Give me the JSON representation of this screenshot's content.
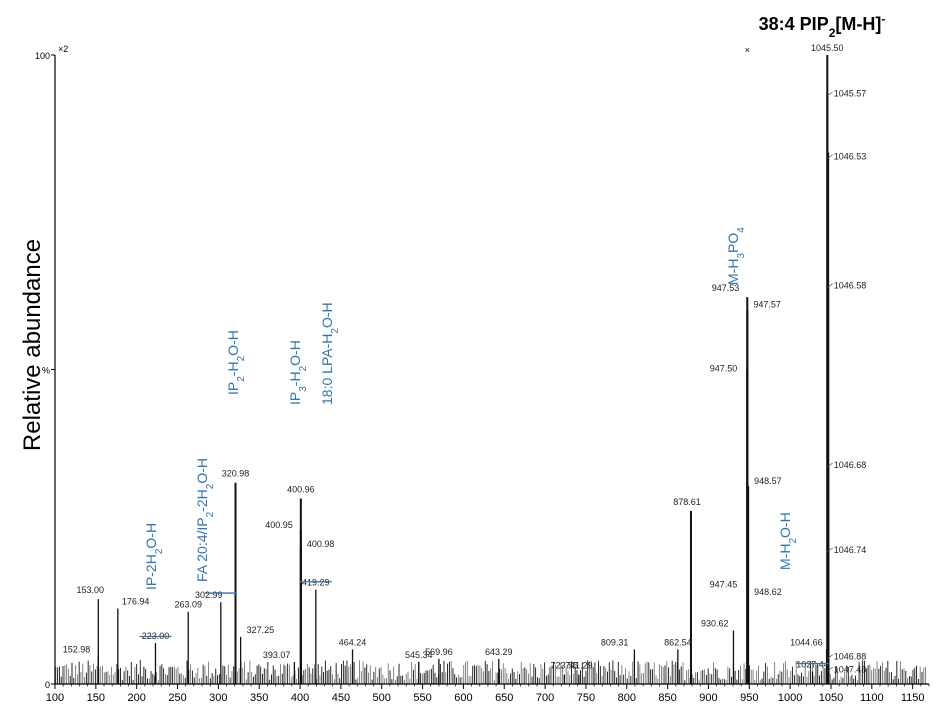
{
  "chart_data": {
    "type": "bar",
    "title": "38:4 PIP₂[M-H]⁻",
    "ylabel": "Relative abundance",
    "xlabel": "",
    "xlim": [
      100,
      1170
    ],
    "ylim": [
      0,
      100
    ],
    "x_ticks": [
      100,
      150,
      200,
      250,
      300,
      350,
      400,
      450,
      500,
      550,
      600,
      650,
      700,
      750,
      800,
      850,
      900,
      950,
      1000,
      1050,
      1100,
      1150
    ],
    "y_ticks": [
      {
        "value": 0,
        "label": "0"
      },
      {
        "value": 50,
        "label": "%"
      },
      {
        "value": 100,
        "label": "100"
      }
    ],
    "zoom_label": "×2",
    "zoom_marker": "×",
    "peaks": [
      {
        "mz": 152.98,
        "label": "152.98",
        "y": 4.5
      },
      {
        "mz": 153.0,
        "label": "153.00",
        "y": 13.5
      },
      {
        "mz": 176.94,
        "label": "176.94",
        "y": 12.0
      },
      {
        "mz": 223.0,
        "label": "223.00",
        "y": 6.5
      },
      {
        "mz": 263.09,
        "label": "263.09",
        "y": 11.5
      },
      {
        "mz": 302.99,
        "label": "302.99",
        "y": 13.0
      },
      {
        "mz": 320.98,
        "label": "320.98",
        "y": 32.0
      },
      {
        "mz": 327.25,
        "label": "327.25",
        "y": 7.5
      },
      {
        "mz": 393.07,
        "label": "393.07",
        "y": 3.5
      },
      {
        "mz": 400.95,
        "label": "400.95",
        "y": 24.5
      },
      {
        "mz": 400.96,
        "label": "400.96",
        "y": 29.5
      },
      {
        "mz": 400.98,
        "label": "400.98",
        "y": 21.5
      },
      {
        "mz": 419.29,
        "label": "419.29",
        "y": 15.0
      },
      {
        "mz": 464.24,
        "label": "464.24",
        "y": 5.5
      },
      {
        "mz": 545.34,
        "label": "545.34",
        "y": 3.5
      },
      {
        "mz": 569.96,
        "label": "569.96",
        "y": 4.0
      },
      {
        "mz": 643.29,
        "label": "643.29",
        "y": 4.0
      },
      {
        "mz": 723.55,
        "label": "723.55",
        "y": 1.5
      },
      {
        "mz": 741.29,
        "label": "741.29",
        "y": 1.5
      },
      {
        "mz": 809.31,
        "label": "809.31",
        "y": 5.5
      },
      {
        "mz": 862.54,
        "label": "862.54",
        "y": 5.5
      },
      {
        "mz": 878.61,
        "label": "878.61",
        "y": 27.5
      },
      {
        "mz": 930.62,
        "label": "930.62",
        "y": 8.5
      },
      {
        "mz": 947.45,
        "label": "947.45",
        "y": 15.0
      },
      {
        "mz": 947.5,
        "label": "947.50",
        "y": 50.0
      },
      {
        "mz": 947.53,
        "label": "947.53",
        "y": 61.5
      },
      {
        "mz": 947.57,
        "label": "947.57",
        "y": 59.5
      },
      {
        "mz": 948.57,
        "label": "948.57",
        "y": 31.5
      },
      {
        "mz": 948.62,
        "label": "948.62",
        "y": 14.5
      },
      {
        "mz": 1027.44,
        "label": "1027.44",
        "y": 2.0
      },
      {
        "mz": 1044.66,
        "label": "1044.66",
        "y": 5.5
      },
      {
        "mz": 1045.5,
        "label": "1045.50",
        "y": 100
      },
      {
        "mz": 1045.57,
        "label": "1045.57",
        "y": 94.0
      },
      {
        "mz": 1046.53,
        "label": "1046.53",
        "y": 84.5
      },
      {
        "mz": 1046.58,
        "label": "1046.58",
        "y": 63.5
      },
      {
        "mz": 1046.68,
        "label": "1046.68",
        "y": 35.0
      },
      {
        "mz": 1046.74,
        "label": "1046.74",
        "y": 21.5
      },
      {
        "mz": 1046.88,
        "label": "1046.88",
        "y": 4.5
      },
      {
        "mz": 1047.48,
        "label": "1047.48",
        "y": 2.5
      }
    ],
    "annotations": [
      {
        "mz": 223.0,
        "label": "IP-2H₂O-H",
        "y": 13.0,
        "underline": true
      },
      {
        "mz": 302.99,
        "label": "FA 20:4/IP₂-2H₂O-H",
        "y": 16.0,
        "underline": true
      },
      {
        "mz": 320.98,
        "label": "IP₂-H₂O-H",
        "y": 35.0,
        "underline": false
      },
      {
        "mz": 400.96,
        "label": "IP₃-H₂O-H",
        "y": 32.5,
        "underline": false
      },
      {
        "mz": 419.29,
        "label": "18:0 LPA-H₂O-H",
        "y": 25.0,
        "underline": true
      },
      {
        "mz": 947.53,
        "label": "M-H₃PO₄",
        "y": 65.0,
        "underline": false
      },
      {
        "mz": 1027.44,
        "label": "M-H₂O-H",
        "y": 22.0,
        "underline": true
      }
    ]
  }
}
